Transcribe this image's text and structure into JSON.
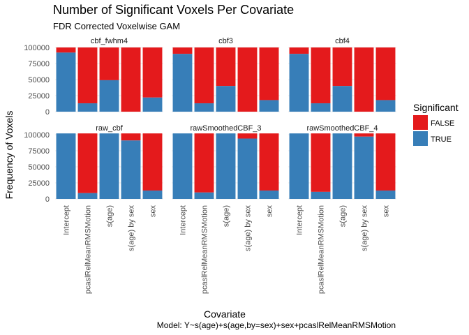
{
  "chart_data": {
    "type": "bar",
    "stacked": true,
    "title": "Number of Significant Voxels Per Covariate",
    "subtitle": "FDR Corrected Voxelwise GAM",
    "xlabel": "Covariate",
    "ylabel": "Frequency of Voxels",
    "caption": "Model: Y~s(age)+s(age,by=sex)+sex+pcaslRelMeanRMSMotion",
    "categories": [
      "Intercept",
      "pcaslRelMeanRMSMotion",
      "s(age)",
      "s(age) by sex",
      "sex"
    ],
    "ylim": [
      0,
      100000
    ],
    "yticks": [
      0,
      25000,
      50000,
      75000,
      100000
    ],
    "legend": {
      "title": "Significant",
      "position": "right",
      "entries": [
        {
          "label": "FALSE",
          "color": "#E41A1C"
        },
        {
          "label": "TRUE",
          "color": "#377EB8"
        }
      ]
    },
    "grid": true,
    "facets": [
      {
        "name": "cbf_fwhm4",
        "ymax": 100000,
        "true": [
          92000,
          13000,
          49000,
          0,
          22000
        ],
        "total": [
          100000,
          100000,
          100000,
          100000,
          100000
        ]
      },
      {
        "name": "cbf3",
        "ymax": 100000,
        "true": [
          90000,
          13000,
          40000,
          0,
          18000
        ],
        "total": [
          100000,
          100000,
          100000,
          100000,
          100000
        ]
      },
      {
        "name": "cbf4",
        "ymax": 100000,
        "true": [
          90000,
          13000,
          40000,
          0,
          18000
        ],
        "total": [
          100000,
          100000,
          100000,
          100000,
          100000
        ]
      },
      {
        "name": "raw_cbf",
        "ymax": 102000,
        "true": [
          102000,
          9000,
          102000,
          91000,
          13000
        ],
        "total": [
          102000,
          102000,
          102000,
          102000,
          102000
        ]
      },
      {
        "name": "rawSmoothedCBF_3",
        "ymax": 102000,
        "true": [
          102000,
          10000,
          102000,
          94000,
          13000
        ],
        "total": [
          102000,
          102000,
          102000,
          102000,
          102000
        ]
      },
      {
        "name": "rawSmoothedCBF_4",
        "ymax": 102000,
        "true": [
          102000,
          11000,
          102000,
          97000,
          13000
        ],
        "total": [
          102000,
          102000,
          102000,
          102000,
          102000
        ]
      }
    ]
  }
}
